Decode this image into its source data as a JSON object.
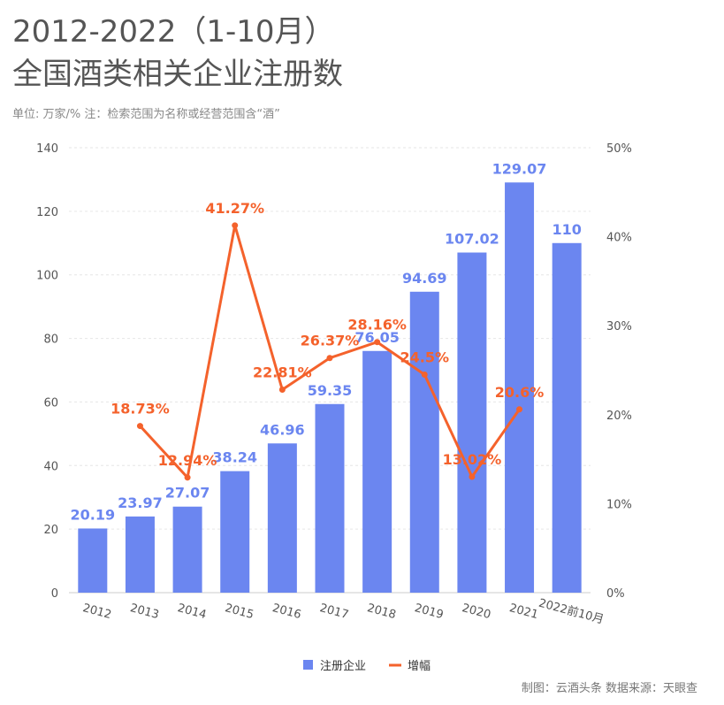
{
  "title_line1": "2012-2022（1-10月）",
  "title_line2": "全国酒类相关企业注册数",
  "subtitle": "单位: 万家/%    注：检索范围为名称或经营范围含“酒”",
  "credit": "制图：云酒头条    数据来源：天眼查",
  "colors": {
    "bar": "#6b86f0",
    "line": "#f4622c",
    "axis_text": "#555555",
    "grid": "#e6e6e6"
  },
  "chart_data": {
    "type": "bar",
    "categories": [
      "2012",
      "2013",
      "2014",
      "2015",
      "2016",
      "2017",
      "2018",
      "2019",
      "2020",
      "2021",
      "2022前10月"
    ],
    "series": [
      {
        "name": "注册企业",
        "type": "bar",
        "axis": "left",
        "values": [
          20.19,
          23.97,
          27.07,
          38.24,
          46.96,
          59.35,
          76.05,
          94.69,
          107.02,
          129.07,
          110
        ],
        "labels": [
          "20.19",
          "23.97",
          "27.07",
          "38.24",
          "46.96",
          "59.35",
          "76.05",
          "94.69",
          "107.02",
          "129.07",
          "110"
        ]
      },
      {
        "name": "增幅",
        "type": "line",
        "axis": "right",
        "values": [
          null,
          18.73,
          12.94,
          41.27,
          22.81,
          26.37,
          28.16,
          24.5,
          13.02,
          20.6,
          null
        ],
        "labels": [
          "",
          "18.73%",
          "12.94%",
          "41.27%",
          "22.81%",
          "26.37%",
          "28.16%",
          "24.5%",
          "13.02%",
          "20.6%",
          ""
        ]
      }
    ],
    "ylim": [
      0,
      140
    ],
    "yticks": [
      "0",
      "20",
      "40",
      "60",
      "80",
      "100",
      "120",
      "140"
    ],
    "y2lim": [
      0,
      50
    ],
    "y2ticks": [
      "0%",
      "10%",
      "20%",
      "30%",
      "40%",
      "50%"
    ],
    "grid": true,
    "legend_position": "bottom-center"
  }
}
